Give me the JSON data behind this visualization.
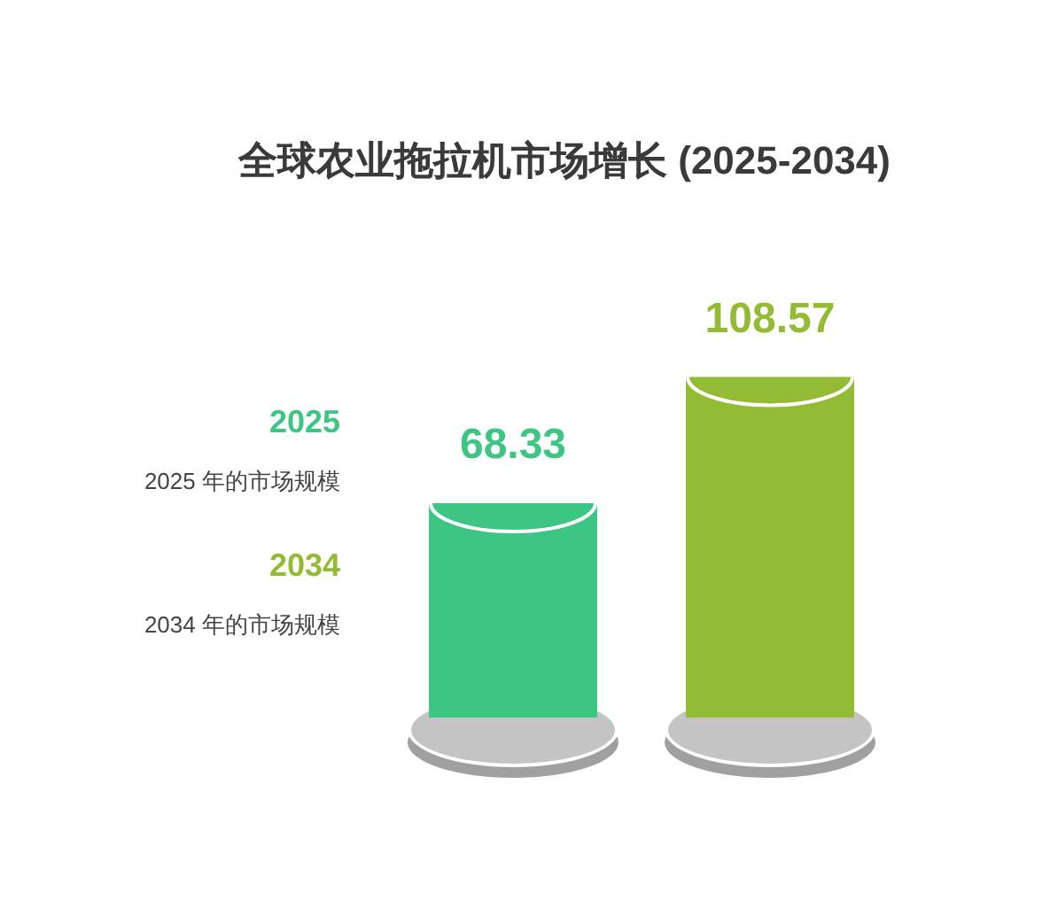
{
  "chart_data": {
    "type": "bar",
    "title": "全球农业拖拉机市场增长 (2025-2034)",
    "categories": [
      null,
      null
    ],
    "stacked": true,
    "series": [
      {
        "name": "2025",
        "color": "#3dc583",
        "values": [
          68.33,
          null
        ]
      },
      {
        "name": "2034",
        "color": "#93bb34",
        "values": [
          null,
          108.57
        ]
      }
    ],
    "data_labels": true,
    "annotations": [
      "2025 年的市场规模",
      "2034 年的市场规模"
    ]
  }
}
